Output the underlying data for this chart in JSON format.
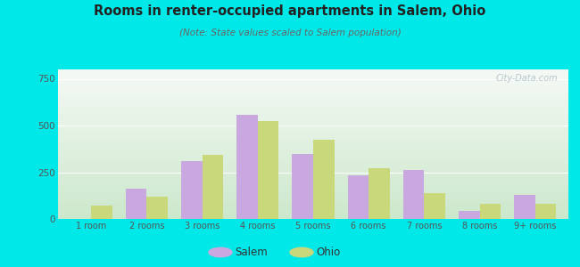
{
  "title": "Rooms in renter-occupied apartments in Salem, Ohio",
  "subtitle": "(Note: State values scaled to Salem population)",
  "categories": [
    "1 room",
    "2 rooms",
    "3 rooms",
    "4 rooms",
    "5 rooms",
    "6 rooms",
    "7 rooms",
    "8 rooms",
    "9+ rooms"
  ],
  "salem_values": [
    0,
    160,
    310,
    555,
    350,
    235,
    260,
    42,
    130
  ],
  "ohio_values": [
    72,
    120,
    345,
    525,
    425,
    270,
    140,
    82,
    82
  ],
  "salem_color": "#c9a8e0",
  "ohio_color": "#c8d87a",
  "background_outer": "#00e8e8",
  "background_inner_top": "#f5f9f5",
  "background_inner_bottom": "#cce8cc",
  "ylim": [
    0,
    800
  ],
  "yticks": [
    0,
    250,
    500,
    750
  ],
  "bar_width": 0.38,
  "legend_salem": "Salem",
  "legend_ohio": "Ohio",
  "watermark": "City-Data.com",
  "grid_color": "#e0e8e0"
}
